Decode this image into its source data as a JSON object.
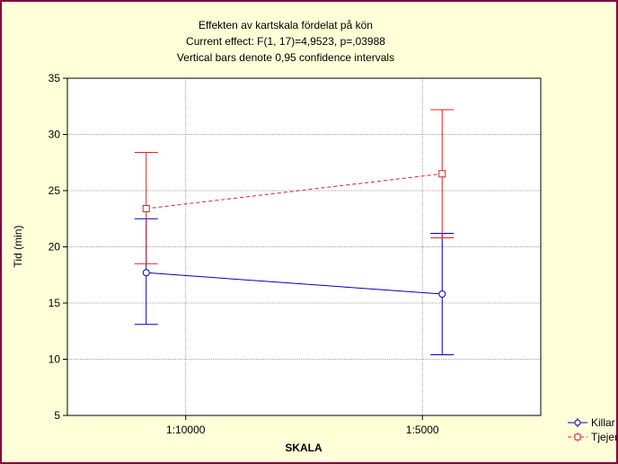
{
  "chart_data": {
    "type": "line",
    "title": "Effekten av kartskala fördelat på kön",
    "subtitle_lines": [
      "Current effect: F(1, 17)=4,9523, p=,03988",
      "Vertical bars denote 0,95 confidence intervals"
    ],
    "xlabel": "SKALA",
    "ylabel": "Tid (min)",
    "categories": [
      "1:10000",
      "1:5000"
    ],
    "ylim": [
      5,
      35
    ],
    "yticks": [
      5,
      10,
      15,
      20,
      25,
      30,
      35
    ],
    "grid": true,
    "legend_position": "bottom-right",
    "series": [
      {
        "name": "Killar",
        "color": "#0000c0",
        "marker": "circle",
        "line_style": "solid",
        "values": [
          17.7,
          15.8
        ],
        "ci_lower": [
          13.1,
          10.4
        ],
        "ci_upper": [
          22.5,
          21.2
        ]
      },
      {
        "name": "Tjejer",
        "color": "#e02020",
        "marker": "square",
        "line_style": "dashed",
        "values": [
          23.4,
          26.5
        ],
        "ci_lower": [
          18.5,
          20.8
        ],
        "ci_upper": [
          28.4,
          32.2
        ]
      }
    ]
  },
  "legend": {
    "items": [
      {
        "label": "Killar"
      },
      {
        "label": "Tjejer"
      }
    ]
  }
}
